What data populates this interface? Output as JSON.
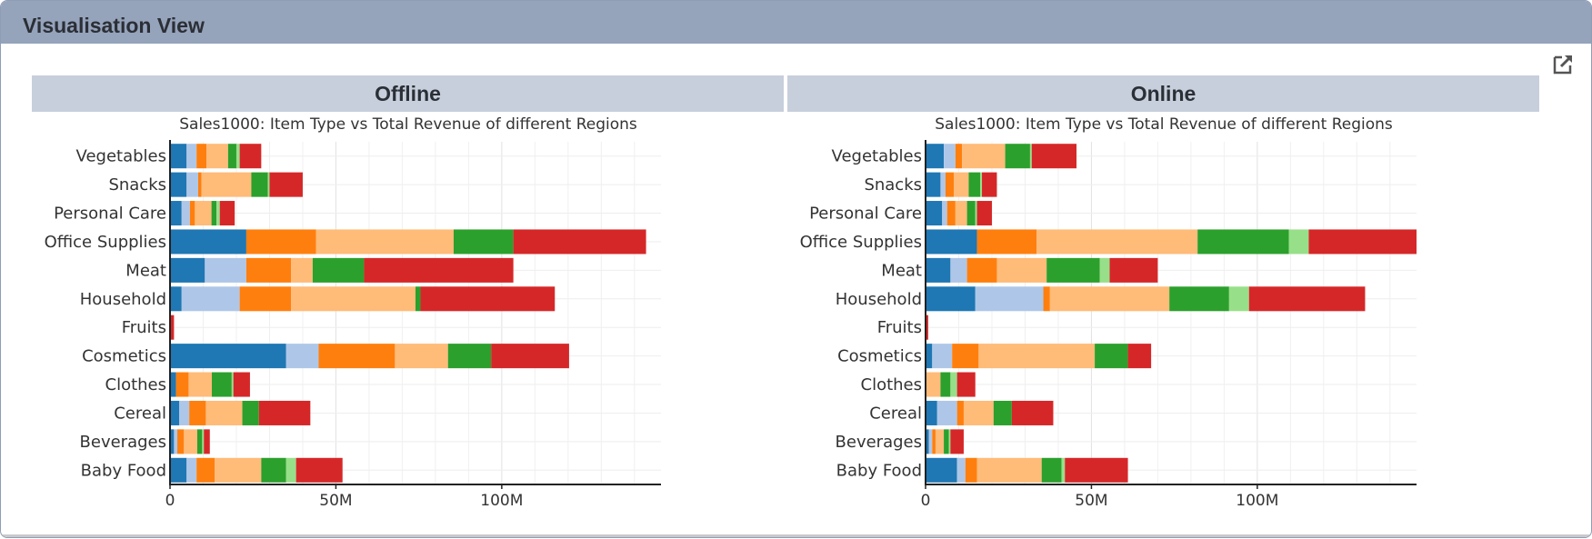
{
  "panel": {
    "title": "Visualisation View"
  },
  "icons": {
    "expand": "external-link-icon"
  },
  "colors": {
    "header_bg": "#95a3bb",
    "facet_bg": "#c7cfdc",
    "regions": [
      "#1f77b4",
      "#aec7e8",
      "#ff7f0e",
      "#ffbb78",
      "#2ca02c",
      "#98df8a",
      "#d62728"
    ]
  },
  "chart_data": [
    {
      "type": "bar",
      "orientation": "horizontal",
      "stacked": true,
      "facet": "Offline",
      "title": "Sales1000: Item Type vs Total Revenue of different Regions",
      "categories": [
        "Vegetables",
        "Snacks",
        "Personal Care",
        "Office Supplies",
        "Meat",
        "Household",
        "Fruits",
        "Cosmetics",
        "Clothes",
        "Cereal",
        "Beverages",
        "Baby Food"
      ],
      "xticks": [
        0,
        50000000,
        100000000
      ],
      "xtick_labels": [
        "0",
        "50M",
        "100M"
      ],
      "xlim": [
        0,
        148000000
      ],
      "grid": true,
      "series": [
        {
          "values": [
            5,
            5,
            3.5,
            23,
            10.5,
            3.5,
            0,
            35,
            1.8,
            2.8,
            1.2,
            5
          ]
        },
        {
          "values": [
            3,
            3.5,
            2.5,
            0,
            12.5,
            17.5,
            0,
            9.8,
            0,
            3,
            1,
            3
          ]
        },
        {
          "values": [
            3,
            1,
            1.5,
            21,
            13.5,
            15.5,
            0,
            23,
            3.8,
            5,
            2,
            5.5
          ]
        },
        {
          "values": [
            6.5,
            15,
            5,
            41.5,
            6.5,
            37.5,
            0,
            16,
            7,
            11,
            4,
            14
          ]
        },
        {
          "values": [
            2.5,
            5,
            1.5,
            18,
            15.5,
            1.5,
            0,
            13,
            6,
            5,
            1.5,
            7.5
          ]
        },
        {
          "values": [
            1,
            0.5,
            1,
            0,
            0,
            0,
            0,
            0,
            0.5,
            0,
            0.5,
            3
          ]
        },
        {
          "values": [
            6.5,
            10,
            4.5,
            40,
            45,
            40.5,
            1.2,
            23.5,
            5,
            15.5,
            1.8,
            14
          ]
        }
      ]
    },
    {
      "type": "bar",
      "orientation": "horizontal",
      "stacked": true,
      "facet": "Online",
      "title": "Sales1000: Item Type vs Total Revenue of different Regions",
      "categories": [
        "Vegetables",
        "Snacks",
        "Personal Care",
        "Office Supplies",
        "Meat",
        "Household",
        "Fruits",
        "Cosmetics",
        "Clothes",
        "Cereal",
        "Beverages",
        "Baby Food"
      ],
      "xticks": [
        0,
        50000000,
        100000000
      ],
      "xtick_labels": [
        "0",
        "50M",
        "100M"
      ],
      "xlim": [
        0,
        148000000
      ],
      "grid": true,
      "series": [
        {
          "values": [
            5.5,
            4.5,
            5,
            15.5,
            7.5,
            15,
            0,
            2,
            0,
            3.5,
            1,
            9.5
          ]
        },
        {
          "values": [
            3.5,
            1.5,
            1.5,
            0,
            5,
            20.5,
            0,
            6,
            0,
            6,
            1,
            2.5
          ]
        },
        {
          "values": [
            2,
            2.5,
            2.5,
            18,
            9,
            2,
            0,
            8,
            0,
            2,
            1,
            3.5
          ]
        },
        {
          "values": [
            13,
            4.5,
            3.5,
            48.5,
            15,
            36,
            0,
            35,
            4.5,
            9,
            2.5,
            19.5
          ]
        },
        {
          "values": [
            7.5,
            3.5,
            2.5,
            27.5,
            16,
            18,
            0,
            10,
            3,
            5.5,
            1.5,
            6
          ]
        },
        {
          "values": [
            0.5,
            0.5,
            0.5,
            6,
            3,
            6,
            0,
            0,
            2,
            0,
            0.5,
            1
          ]
        },
        {
          "values": [
            13.5,
            4.5,
            4.5,
            32.5,
            14.5,
            35,
            0.8,
            7,
            5.5,
            12.5,
            4,
            19
          ]
        }
      ]
    }
  ]
}
